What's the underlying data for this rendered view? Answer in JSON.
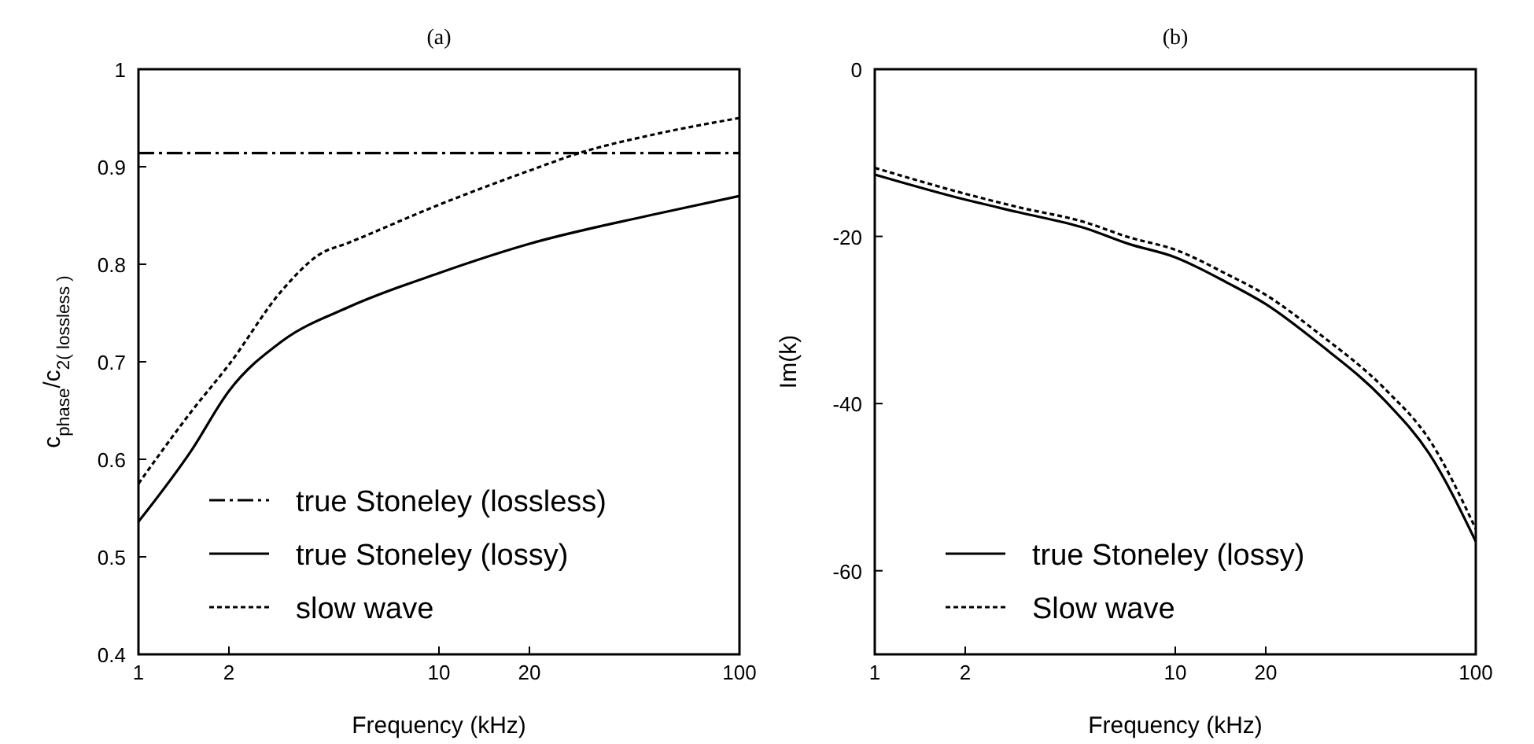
{
  "chart_data": [
    {
      "type": "line",
      "title": "(a)",
      "xlabel": "Frequency (kHz)",
      "ylabel": "c$_{phase}$/c$_{2( lossless )}$",
      "log": "x",
      "xlim": [
        1,
        100
      ],
      "xticks": [
        1,
        2,
        10,
        20,
        100
      ],
      "ylim": [
        0.4,
        1
      ],
      "yticks": [
        0.4,
        0.5,
        0.6,
        0.7,
        0.8,
        0.9,
        1
      ],
      "legend": "bottom left",
      "series": [
        {
          "name": "true Stoneley (lossless)",
          "color": "#000000",
          "line_style": "dashed",
          "x": [
            1,
            100
          ],
          "values": [
            0.914,
            0.914
          ]
        },
        {
          "name": "true Stoneley (lossy)",
          "color": "#000000",
          "line_style": "solid",
          "x": [
            1,
            1.5,
            2,
            3,
            5,
            10,
            20,
            50,
            100
          ],
          "values": [
            0.536,
            0.609,
            0.67,
            0.721,
            0.756,
            0.791,
            0.821,
            0.85,
            0.87
          ]
        },
        {
          "name": "slow wave",
          "color": "#000000",
          "line_style": "dotted",
          "x": [
            1,
            1.5,
            2,
            3,
            4,
            5,
            10,
            20,
            30,
            50,
            100
          ],
          "values": [
            0.575,
            0.649,
            0.697,
            0.773,
            0.81,
            0.822,
            0.861,
            0.896,
            0.915,
            0.932,
            0.95
          ]
        }
      ]
    },
    {
      "type": "line",
      "title": "(b)",
      "xlabel": "Frequency (kHz)",
      "ylabel": "Im(k)",
      "log": "x",
      "xlim": [
        1,
        100
      ],
      "xticks": [
        1,
        2,
        10,
        20,
        100
      ],
      "ylim": [
        -70,
        0
      ],
      "yticks": [
        -60,
        -40,
        -20,
        0
      ],
      "legend": "bottom left",
      "series": [
        {
          "name": "true Stoneley (lossy)",
          "color": "#000000",
          "line_style": "solid",
          "x": [
            1,
            2,
            3,
            5,
            7,
            10,
            15,
            20,
            30,
            50,
            70,
            100
          ],
          "values": [
            -12.6,
            -15.6,
            -17.1,
            -19,
            -20.9,
            -22.5,
            -25.6,
            -28.1,
            -32.8,
            -39.7,
            -46,
            -56.5
          ]
        },
        {
          "name": "Slow wave",
          "color": "#000000",
          "line_style": "dotted",
          "x": [
            1,
            2,
            3,
            5,
            7,
            10,
            15,
            20,
            30,
            50,
            70,
            100
          ],
          "values": [
            -11.8,
            -14.9,
            -16.5,
            -18.3,
            -20.1,
            -21.6,
            -24.6,
            -27,
            -31.6,
            -38.3,
            -44.3,
            -55
          ]
        }
      ]
    }
  ]
}
